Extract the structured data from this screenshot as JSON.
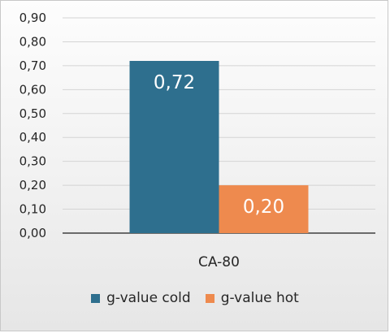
{
  "chart_data": {
    "type": "bar",
    "categories": [
      "CA-80"
    ],
    "series": [
      {
        "name": "g-value cold",
        "values": [
          0.72
        ],
        "label": "0,72",
        "color": "#2e6f8e"
      },
      {
        "name": "g-value hot",
        "values": [
          0.2
        ],
        "label": "0,20",
        "color": "#ee8a4e"
      }
    ],
    "ylim": [
      0,
      0.9
    ],
    "yticks": [
      {
        "value": 0.0,
        "label": "0,00"
      },
      {
        "value": 0.1,
        "label": "0,10"
      },
      {
        "value": 0.2,
        "label": "0,20"
      },
      {
        "value": 0.3,
        "label": "0,30"
      },
      {
        "value": 0.4,
        "label": "0,40"
      },
      {
        "value": 0.5,
        "label": "0,50"
      },
      {
        "value": 0.6,
        "label": "0,60"
      },
      {
        "value": 0.7,
        "label": "0,70"
      },
      {
        "value": 0.8,
        "label": "0,80"
      },
      {
        "value": 0.9,
        "label": "0,90"
      }
    ],
    "grid": true,
    "legend_position": "bottom",
    "title": "",
    "xlabel": "",
    "ylabel": ""
  }
}
